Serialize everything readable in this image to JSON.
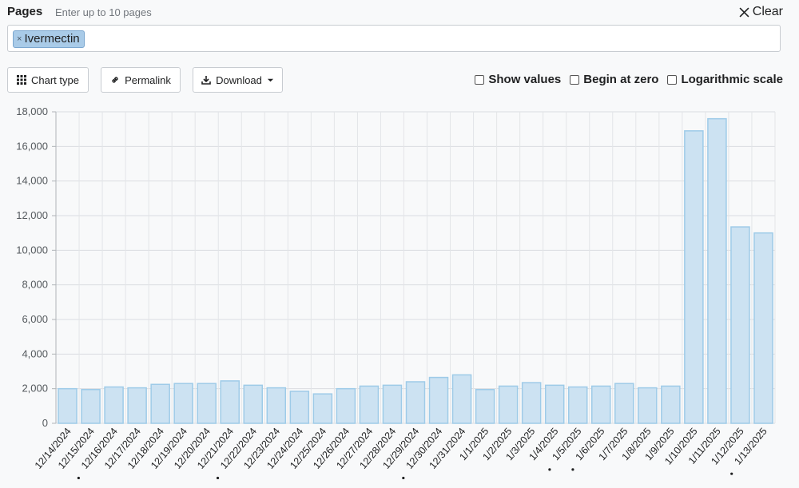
{
  "header": {
    "pages_label": "Pages",
    "pages_hint": "Enter up to 10 pages",
    "clear_label": "Clear"
  },
  "selected_page": {
    "label": "Ivermectin",
    "remove_icon": "×"
  },
  "toolbar": {
    "chart_type_label": "Chart type",
    "permalink_label": "Permalink",
    "download_label": "Download"
  },
  "options": {
    "show_values": {
      "label": "Show values",
      "checked": false
    },
    "begin_at_zero": {
      "label": "Begin at zero",
      "checked": false
    },
    "log_scale": {
      "label": "Logarithmic scale",
      "checked": false
    }
  },
  "chart_data": {
    "type": "bar",
    "categories": [
      "12/14/2024",
      "12/15/2024",
      "12/16/2024",
      "12/17/2024",
      "12/18/2024",
      "12/19/2024",
      "12/20/2024",
      "12/21/2024",
      "12/22/2024",
      "12/23/2024",
      "12/24/2024",
      "12/25/2024",
      "12/26/2024",
      "12/27/2024",
      "12/28/2024",
      "12/29/2024",
      "12/30/2024",
      "12/31/2024",
      "1/1/2025",
      "1/2/2025",
      "1/3/2025",
      "1/4/2025",
      "1/5/2025",
      "1/6/2025",
      "1/7/2025",
      "1/8/2025",
      "1/9/2025",
      "1/10/2025",
      "1/11/2025",
      "1/12/2025",
      "1/13/2025"
    ],
    "marked_categories": [
      "12/16/2024",
      "12/22/2024",
      "12/30/2024",
      "1/5/2025",
      "1/6/2025",
      "1/13/2025"
    ],
    "series": [
      {
        "values": [
          2000,
          1950,
          2100,
          2050,
          2250,
          2300,
          2300,
          2450,
          2200,
          2050,
          1850,
          1700,
          2000,
          2150,
          2200,
          2400,
          2650,
          2800,
          1950,
          2150,
          2350,
          2200,
          2100,
          2150,
          2300,
          2050,
          2150,
          16900,
          17600,
          11350,
          11000
        ]
      }
    ],
    "yticks": [
      0,
      2000,
      4000,
      6000,
      8000,
      10000,
      12000,
      14000,
      16000,
      18000
    ],
    "ytick_labels": [
      "0",
      "2,000",
      "4,000",
      "6,000",
      "8,000",
      "10,000",
      "12,000",
      "14,000",
      "16,000",
      "18,000"
    ],
    "ylim": [
      0,
      18000
    ],
    "grid": true,
    "bar_fill": "#cce2f2",
    "bar_stroke": "#9ecbe8",
    "xlabel": "",
    "ylabel": ""
  }
}
